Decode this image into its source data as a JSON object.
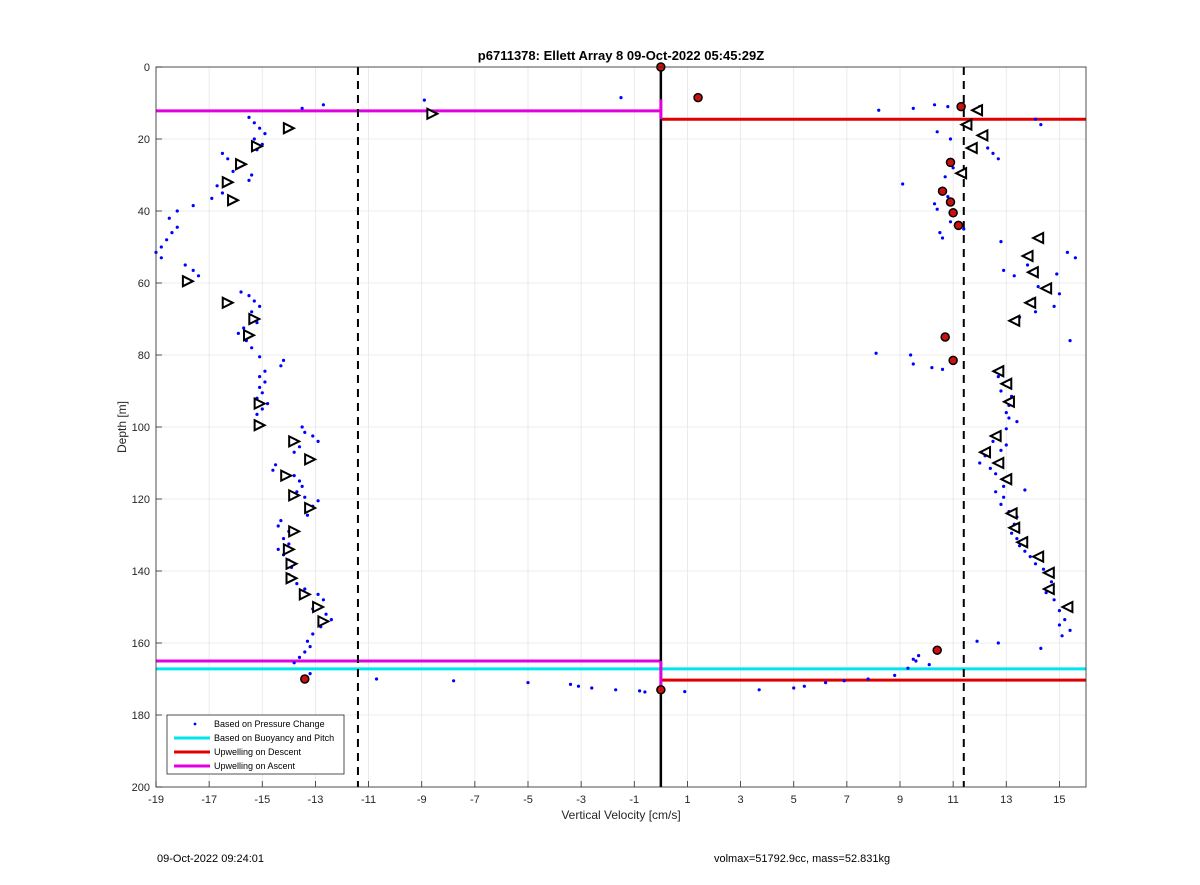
{
  "chart_data": {
    "type": "scatter",
    "title": "p6711378: Ellett Array 8 09-Oct-2022 05:45:29Z",
    "xlabel": "Vertical Velocity [cm/s]",
    "ylabel": "Depth [m]",
    "xlim": [
      -19,
      16
    ],
    "ylim": [
      0,
      200
    ],
    "y_reversed": true,
    "grid": true,
    "x_ticks": [
      -19,
      -17,
      -15,
      -13,
      -11,
      -9,
      -7,
      -5,
      -3,
      -1,
      1,
      3,
      5,
      7,
      9,
      11,
      13,
      15
    ],
    "y_ticks": [
      0,
      20,
      40,
      60,
      80,
      100,
      120,
      140,
      160,
      180,
      200
    ],
    "legend_position": "bottom-left",
    "legend": [
      {
        "label": "Based on Pressure Change",
        "color": "#0000ff",
        "marker": "dot"
      },
      {
        "label": "Based on Buoyancy and Pitch",
        "color": "#00e5ee",
        "marker": "line"
      },
      {
        "label": "Upwelling on Descent",
        "color": "#e00000",
        "marker": "line"
      },
      {
        "label": "Upwelling on Ascent",
        "color": "#e000e0",
        "marker": "line"
      }
    ],
    "series": [
      {
        "name": "Based on Pressure Change",
        "color": "#0000ff",
        "points": [
          [
            -12.7,
            10.5
          ],
          [
            -13.5,
            11.5
          ],
          [
            -8.9,
            9.2
          ],
          [
            -1.5,
            8.5
          ],
          [
            -15.5,
            14
          ],
          [
            -15.3,
            15.5
          ],
          [
            -15.1,
            17
          ],
          [
            -14.9,
            18.5
          ],
          [
            -15.3,
            20
          ],
          [
            -15.0,
            21.5
          ],
          [
            -15.2,
            23
          ],
          [
            -16.5,
            24
          ],
          [
            -16.3,
            25.5
          ],
          [
            -15.8,
            27
          ],
          [
            -16.1,
            29
          ],
          [
            -15.4,
            30
          ],
          [
            -15.5,
            31.5
          ],
          [
            -16.7,
            33
          ],
          [
            -16.5,
            35
          ],
          [
            -16.9,
            36.5
          ],
          [
            -17.6,
            38.5
          ],
          [
            -18.2,
            40
          ],
          [
            -18.5,
            42
          ],
          [
            -18.2,
            44.5
          ],
          [
            -18.4,
            46
          ],
          [
            -18.6,
            48
          ],
          [
            -18.8,
            50
          ],
          [
            -19.0,
            51.5
          ],
          [
            -18.8,
            53
          ],
          [
            -17.9,
            55
          ],
          [
            -17.6,
            56.5
          ],
          [
            -17.4,
            58
          ],
          [
            -15.8,
            62.5
          ],
          [
            -15.5,
            63.5
          ],
          [
            -15.3,
            65
          ],
          [
            -15.1,
            66.5
          ],
          [
            -15.4,
            68
          ],
          [
            -15.2,
            71
          ],
          [
            -15.7,
            72.5
          ],
          [
            -15.9,
            74
          ],
          [
            -15.6,
            76
          ],
          [
            -15.4,
            78
          ],
          [
            -15.1,
            80.5
          ],
          [
            -14.2,
            81.5
          ],
          [
            -14.3,
            83
          ],
          [
            -14.9,
            84.5
          ],
          [
            -15.1,
            86
          ],
          [
            -14.9,
            87.5
          ],
          [
            -15.1,
            89
          ],
          [
            -15.0,
            90.5
          ],
          [
            -15.2,
            92
          ],
          [
            -14.8,
            93.5
          ],
          [
            -15.0,
            95
          ],
          [
            -15.2,
            96.5
          ],
          [
            -13.5,
            100
          ],
          [
            -13.4,
            101.5
          ],
          [
            -13.1,
            102.5
          ],
          [
            -12.9,
            104
          ],
          [
            -13.6,
            105.5
          ],
          [
            -13.8,
            107
          ],
          [
            -13.2,
            108.5
          ],
          [
            -14.5,
            110.5
          ],
          [
            -14.6,
            112
          ],
          [
            -13.8,
            113.5
          ],
          [
            -13.6,
            115
          ],
          [
            -13.5,
            116.5
          ],
          [
            -13.7,
            118
          ],
          [
            -13.4,
            119.5
          ],
          [
            -12.9,
            120.5
          ],
          [
            -13.1,
            122
          ],
          [
            -13.3,
            124.5
          ],
          [
            -14.3,
            126
          ],
          [
            -14.4,
            127.5
          ],
          [
            -14.0,
            129
          ],
          [
            -14.2,
            131
          ],
          [
            -14.0,
            132.5
          ],
          [
            -14.4,
            134
          ],
          [
            -14.2,
            135.5
          ],
          [
            -14.0,
            137
          ],
          [
            -13.9,
            139
          ],
          [
            -14.0,
            141
          ],
          [
            -13.7,
            143.5
          ],
          [
            -13.4,
            145
          ],
          [
            -12.9,
            146.5
          ],
          [
            -12.7,
            148
          ],
          [
            -13.1,
            150.5
          ],
          [
            -12.6,
            152
          ],
          [
            -12.4,
            153.5
          ],
          [
            -12.8,
            155.5
          ],
          [
            -13.1,
            157.5
          ],
          [
            -13.3,
            159.5
          ],
          [
            -13.2,
            161
          ],
          [
            -13.4,
            162.5
          ],
          [
            -13.6,
            164
          ],
          [
            -13.8,
            165.5
          ],
          [
            -13.2,
            168.5
          ],
          [
            -10.7,
            170
          ],
          [
            -7.8,
            170.5
          ],
          [
            -5.0,
            171
          ],
          [
            -3.4,
            171.5
          ],
          [
            -3.1,
            172
          ],
          [
            -2.6,
            172.5
          ],
          [
            -1.7,
            173
          ],
          [
            -0.8,
            173.3
          ],
          [
            -0.6,
            173.6
          ],
          [
            0.9,
            173.5
          ],
          [
            8.2,
            12
          ],
          [
            9.5,
            11.5
          ],
          [
            10.3,
            10.5
          ],
          [
            10.8,
            11
          ],
          [
            11.8,
            12
          ],
          [
            12.0,
            11
          ],
          [
            14.1,
            14.5
          ],
          [
            14.3,
            16
          ],
          [
            10.4,
            18
          ],
          [
            10.9,
            20
          ],
          [
            12.3,
            22.5
          ],
          [
            12.5,
            24
          ],
          [
            12.7,
            25.5
          ],
          [
            11.0,
            28
          ],
          [
            10.7,
            30.5
          ],
          [
            9.1,
            32.5
          ],
          [
            10.5,
            34
          ],
          [
            10.8,
            36
          ],
          [
            10.3,
            38
          ],
          [
            10.4,
            39.5
          ],
          [
            11.0,
            41
          ],
          [
            10.9,
            43
          ],
          [
            10.5,
            46
          ],
          [
            10.6,
            47.5
          ],
          [
            11.4,
            45
          ],
          [
            12.8,
            48.5
          ],
          [
            15.3,
            51.5
          ],
          [
            15.6,
            53
          ],
          [
            13.8,
            55
          ],
          [
            12.9,
            56.5
          ],
          [
            13.3,
            58
          ],
          [
            14.9,
            57.5
          ],
          [
            14.2,
            61
          ],
          [
            15.0,
            63
          ],
          [
            14.0,
            64.5
          ],
          [
            14.8,
            66.5
          ],
          [
            14.1,
            68
          ],
          [
            13.5,
            69.5
          ],
          [
            15.4,
            76
          ],
          [
            8.1,
            79.5
          ],
          [
            9.4,
            80
          ],
          [
            9.5,
            82.5
          ],
          [
            10.2,
            83.5
          ],
          [
            10.6,
            84
          ],
          [
            12.7,
            86
          ],
          [
            13.0,
            87.5
          ],
          [
            12.8,
            90
          ],
          [
            13.2,
            91.5
          ],
          [
            13.1,
            94
          ],
          [
            13.0,
            96
          ],
          [
            13.1,
            97.5
          ],
          [
            13.4,
            98.5
          ],
          [
            13.0,
            100.5
          ],
          [
            12.6,
            102
          ],
          [
            12.5,
            104
          ],
          [
            13.0,
            105
          ],
          [
            12.8,
            106.5
          ],
          [
            12.2,
            108
          ],
          [
            12.0,
            110
          ],
          [
            12.4,
            111.5
          ],
          [
            12.6,
            113
          ],
          [
            13.0,
            115
          ],
          [
            12.9,
            116.5
          ],
          [
            12.6,
            118
          ],
          [
            12.9,
            119.5
          ],
          [
            13.7,
            117.5
          ],
          [
            12.8,
            121.5
          ],
          [
            13.1,
            123.5
          ],
          [
            13.4,
            125
          ],
          [
            13.3,
            127
          ],
          [
            13.2,
            129.5
          ],
          [
            13.4,
            131
          ],
          [
            13.5,
            133
          ],
          [
            13.7,
            134.5
          ],
          [
            13.9,
            136
          ],
          [
            14.1,
            138
          ],
          [
            14.4,
            139.5
          ],
          [
            14.6,
            141
          ],
          [
            14.7,
            143
          ],
          [
            14.5,
            146
          ],
          [
            14.8,
            148
          ],
          [
            15.0,
            151
          ],
          [
            15.2,
            153.5
          ],
          [
            15.0,
            155
          ],
          [
            15.4,
            156.5
          ],
          [
            15.1,
            158
          ],
          [
            9.7,
            163.5
          ],
          [
            9.5,
            164.5
          ],
          [
            9.6,
            165
          ],
          [
            9.3,
            167
          ],
          [
            10.1,
            166
          ],
          [
            8.8,
            169
          ],
          [
            7.8,
            170
          ],
          [
            6.9,
            170.5
          ],
          [
            6.2,
            171
          ],
          [
            5.4,
            172
          ],
          [
            5.0,
            172.5
          ],
          [
            3.7,
            173
          ],
          [
            11.9,
            159.5
          ],
          [
            12.7,
            160
          ],
          [
            14.3,
            161.5
          ]
        ]
      },
      {
        "name": "Ascent markers",
        "color": "#000000",
        "points": [
          [
            -8.6,
            13
          ],
          [
            -14.0,
            17
          ],
          [
            -15.2,
            22
          ],
          [
            -15.8,
            27
          ],
          [
            -16.3,
            32
          ],
          [
            -16.1,
            37
          ],
          [
            -17.8,
            59.5
          ],
          [
            -16.3,
            65.5
          ],
          [
            -15.3,
            70
          ],
          [
            -15.5,
            74.5
          ],
          [
            -15.1,
            93.5
          ],
          [
            -15.1,
            99.5
          ],
          [
            -13.8,
            104
          ],
          [
            -13.2,
            109
          ],
          [
            -14.1,
            113.5
          ],
          [
            -13.8,
            119
          ],
          [
            -13.2,
            122.5
          ],
          [
            -13.8,
            129
          ],
          [
            -14.0,
            134
          ],
          [
            -13.9,
            138
          ],
          [
            -13.9,
            142
          ],
          [
            -13.4,
            146.5
          ],
          [
            -12.9,
            150
          ],
          [
            -12.7,
            154
          ]
        ]
      },
      {
        "name": "Descent markers",
        "color": "#000000",
        "points": [
          [
            11.9,
            12
          ],
          [
            11.5,
            16
          ],
          [
            12.1,
            19
          ],
          [
            11.7,
            22.5
          ],
          [
            11.3,
            29.5
          ],
          [
            14.2,
            47.5
          ],
          [
            13.8,
            52.5
          ],
          [
            14.0,
            57
          ],
          [
            14.5,
            61.5
          ],
          [
            13.9,
            65.5
          ],
          [
            13.3,
            70.5
          ],
          [
            12.7,
            84.5
          ],
          [
            13.0,
            88
          ],
          [
            13.1,
            93
          ],
          [
            12.6,
            102.5
          ],
          [
            12.2,
            107
          ],
          [
            12.7,
            110
          ],
          [
            13.0,
            114.5
          ],
          [
            13.2,
            124
          ],
          [
            13.3,
            128
          ],
          [
            13.6,
            132
          ],
          [
            14.2,
            136
          ],
          [
            14.6,
            140.5
          ],
          [
            14.6,
            145
          ],
          [
            15.3,
            150
          ]
        ]
      },
      {
        "name": "Filled markers",
        "color": "#cc0000",
        "points": [
          [
            0.0,
            0
          ],
          [
            1.4,
            8.5
          ],
          [
            11.3,
            11
          ],
          [
            10.9,
            26.5
          ],
          [
            10.6,
            34.5
          ],
          [
            10.9,
            37.5
          ],
          [
            11.0,
            40.5
          ],
          [
            11.2,
            44
          ],
          [
            10.7,
            75
          ],
          [
            11.0,
            81.5
          ],
          [
            10.4,
            162
          ],
          [
            -13.4,
            170
          ],
          [
            0.0,
            173
          ]
        ]
      }
    ],
    "vertical_lines": [
      {
        "x": 0.0,
        "style": "solid",
        "color": "#000000"
      },
      {
        "x": -11.4,
        "style": "dashed",
        "color": "#000000"
      },
      {
        "x": 11.4,
        "style": "dashed",
        "color": "#000000"
      }
    ],
    "horizontal_lines": [
      {
        "name": "Upwelling on Ascent",
        "y": 12.2,
        "x_from": -19,
        "x_to": 0,
        "color": "#e000e0"
      },
      {
        "name": "Upwelling on Ascent",
        "y": 165,
        "x_from": -19,
        "x_to": 0,
        "color": "#e000e0"
      },
      {
        "name": "Upwelling on Descent",
        "y": 14.5,
        "x_from": 0,
        "x_to": 16,
        "color": "#e00000"
      },
      {
        "name": "Upwelling on Descent",
        "y": 170.3,
        "x_from": 0,
        "x_to": 16,
        "color": "#e00000"
      },
      {
        "name": "Based on Buoyancy and Pitch",
        "y": 167.2,
        "x_from": -19,
        "x_to": 16,
        "color": "#00e5ee"
      }
    ],
    "vertical_segments": [
      {
        "x": 0.0,
        "y_from": 9,
        "y_to": 14.5,
        "color": "#e000e0"
      },
      {
        "x": 0.0,
        "y_from": 165,
        "y_to": 172,
        "color": "#e000e0"
      }
    ]
  },
  "footer": {
    "left_text": "09-Oct-2022 09:24:01",
    "right_text": "volmax=51792.9cc, mass=52.831kg"
  }
}
